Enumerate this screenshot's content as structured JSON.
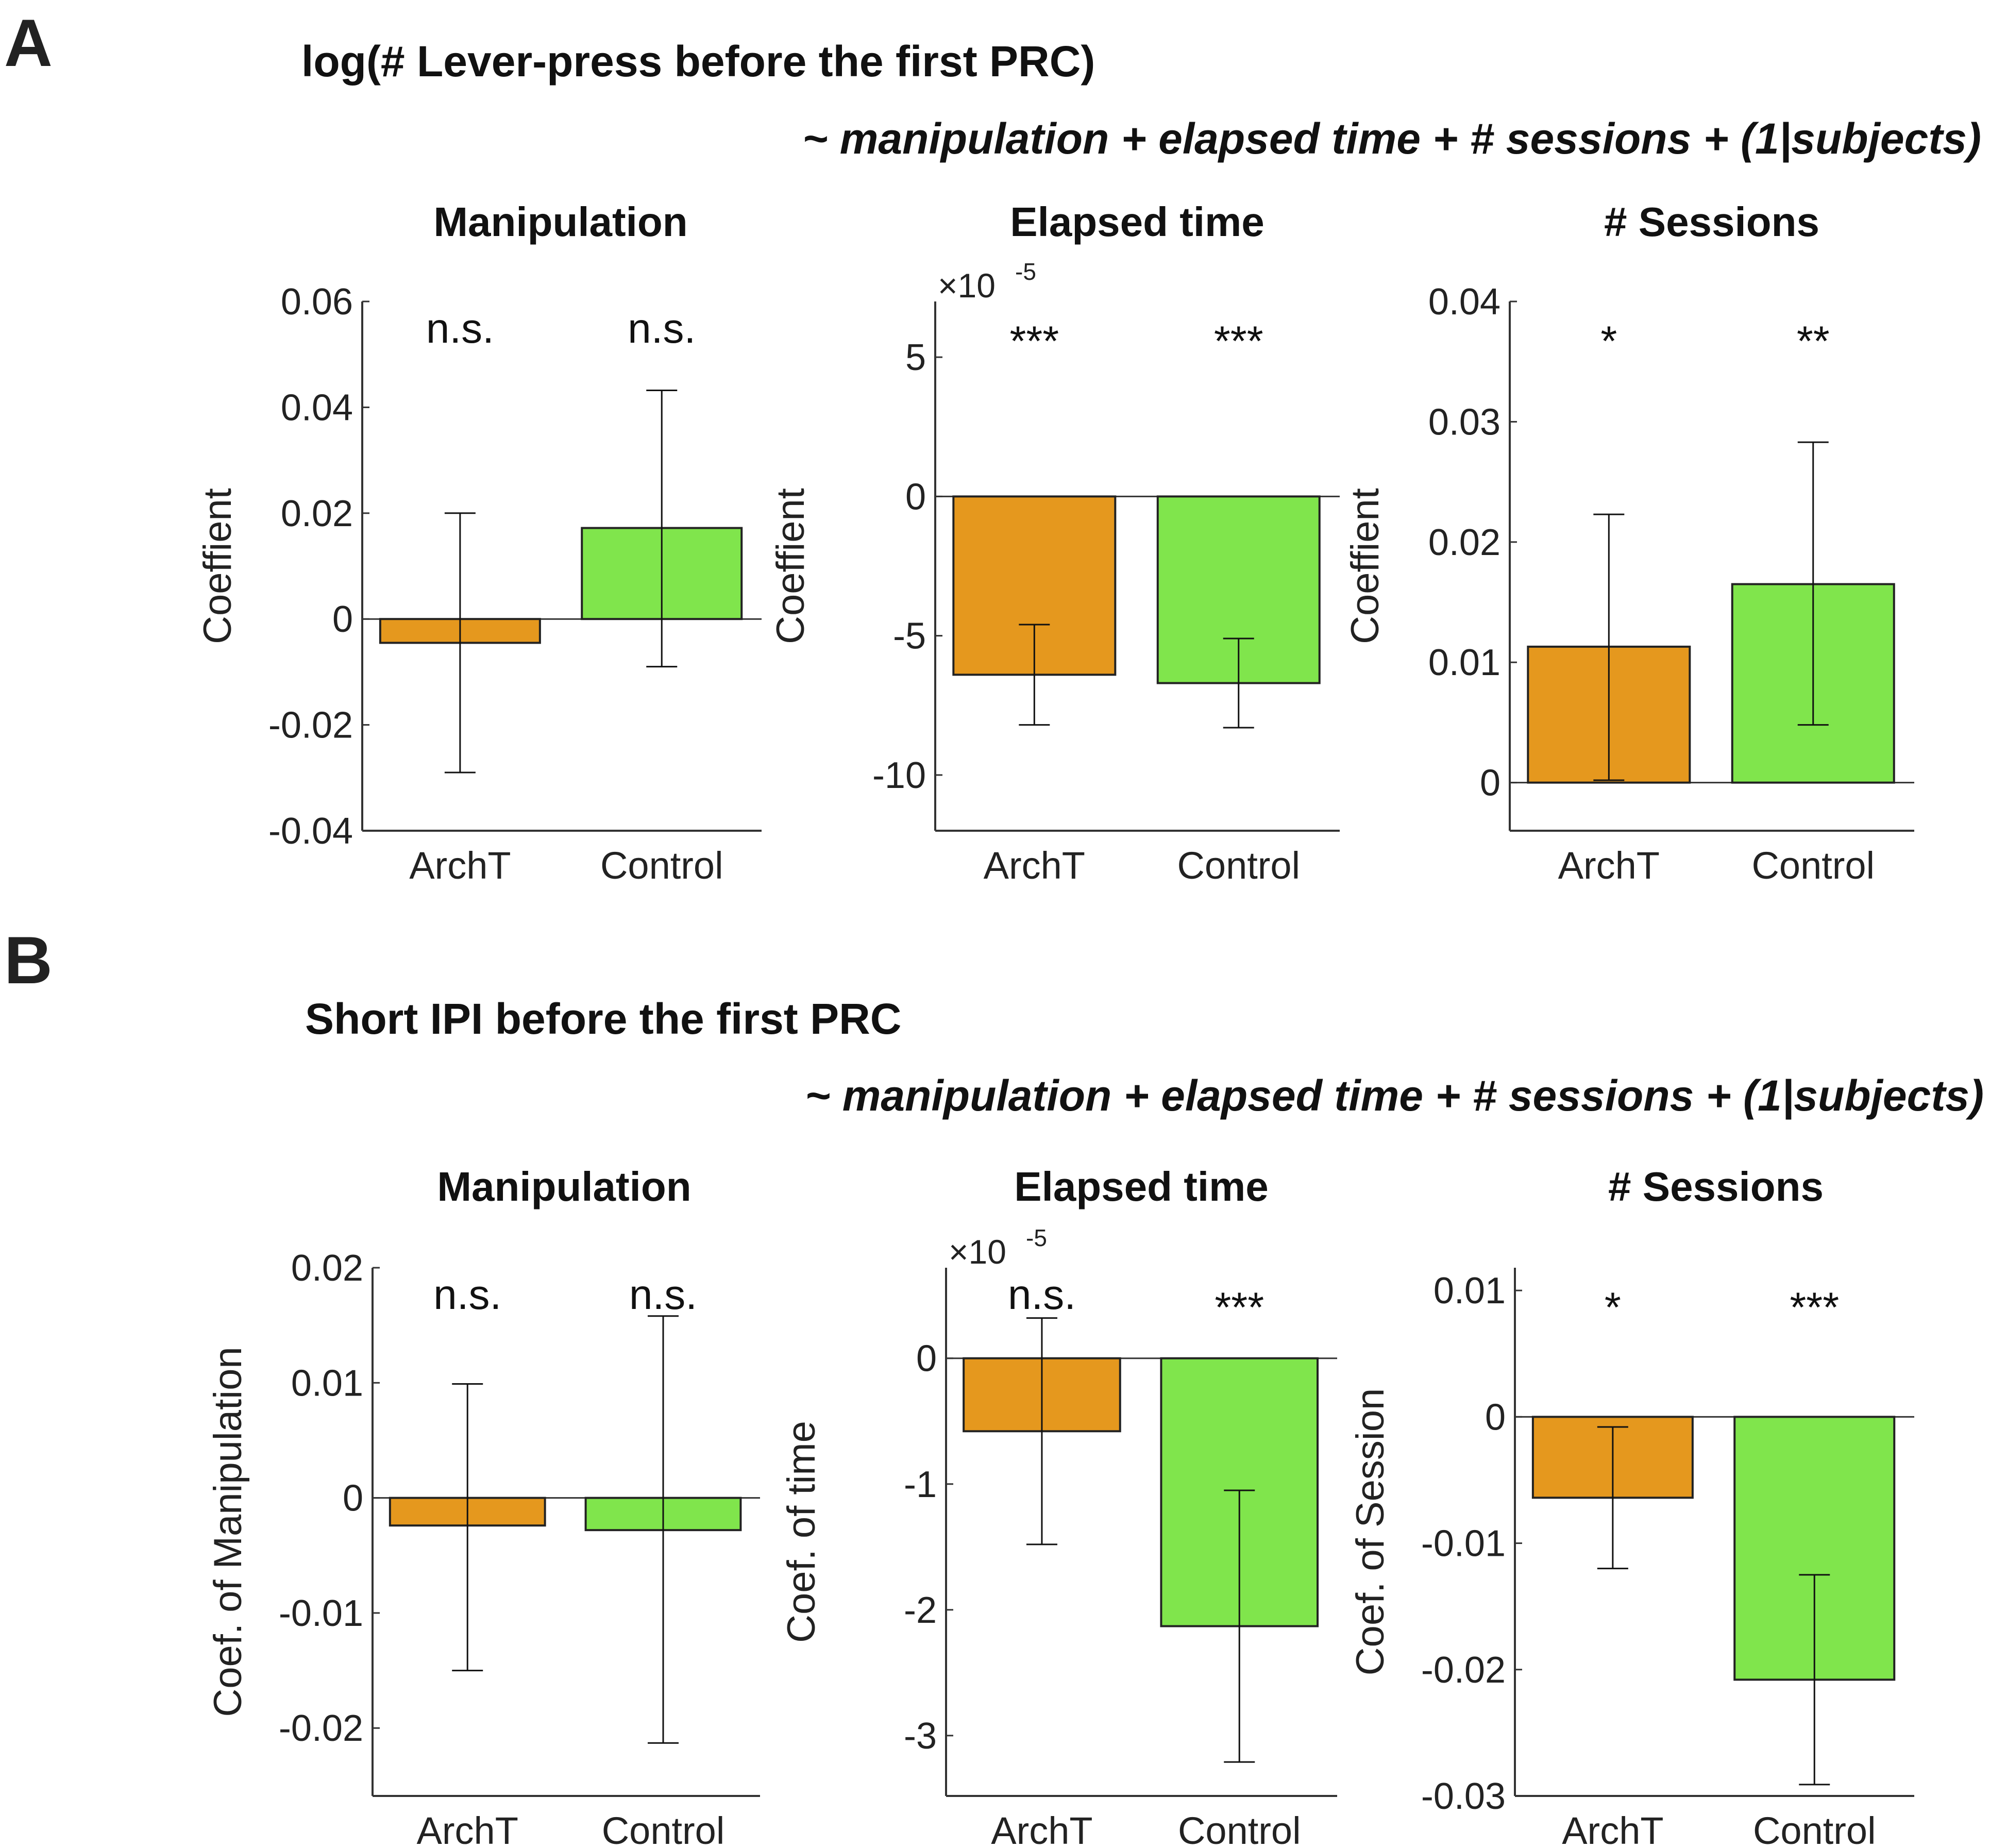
{
  "panels": [
    {
      "letter": "A",
      "heading": "log(# Lever-press before the first PRC)",
      "formula": "~ manipulation + elapsed time + # sessions + (1|subjects)"
    },
    {
      "letter": "B",
      "heading": "Short IPI before the first PRC",
      "formula": "~ manipulation + elapsed time + # sessions + (1|subjects)"
    }
  ],
  "colors": {
    "ArchT": "#E5981E",
    "Control": "#80E54C",
    "axis": "#333333",
    "text": "#111111"
  },
  "chart_data": [
    {
      "type": "bar",
      "panel": "A",
      "title": "Manipulation",
      "ylabel": "Coeffient",
      "scale_base": "",
      "scale_exponent": "",
      "categories": [
        "ArchT",
        "Control"
      ],
      "values": [
        -0.0045,
        0.0172
      ],
      "err_low": [
        -0.029,
        -0.009
      ],
      "err_high": [
        0.02,
        0.0432
      ],
      "significance": [
        "n.s.",
        "n.s."
      ],
      "ylim": [
        -0.04,
        0.06
      ],
      "yticks": [
        -0.04,
        -0.02,
        0,
        0.02,
        0.04,
        0.06
      ],
      "ytick_labels": [
        "-0.04",
        "-0.02",
        "0",
        "0.02",
        "0.04",
        "0.06"
      ]
    },
    {
      "type": "bar",
      "panel": "A",
      "title": "Elapsed time",
      "ylabel": "Coeffient",
      "scale_base": "×10",
      "scale_exponent": "-5",
      "categories": [
        "ArchT",
        "Control"
      ],
      "values": [
        -6.4,
        -6.7
      ],
      "err_low": [
        -8.2,
        -8.3
      ],
      "err_high": [
        -4.6,
        -5.1
      ],
      "significance": [
        "***",
        "***"
      ],
      "ylim": [
        -12,
        7
      ],
      "yticks": [
        -10,
        -5,
        0,
        5
      ],
      "ytick_labels": [
        "-10",
        "-5",
        "0",
        "5"
      ]
    },
    {
      "type": "bar",
      "panel": "A",
      "title": "# Sessions",
      "ylabel": "Coeffient",
      "scale_base": "",
      "scale_exponent": "",
      "categories": [
        "ArchT",
        "Control"
      ],
      "values": [
        0.0113,
        0.0165
      ],
      "err_low": [
        0.0002,
        0.0048
      ],
      "err_high": [
        0.0223,
        0.0283
      ],
      "significance": [
        "*",
        "**"
      ],
      "ylim": [
        -0.004,
        0.04
      ],
      "yticks": [
        0,
        0.01,
        0.02,
        0.03,
        0.04
      ],
      "ytick_labels": [
        "0",
        "0.01",
        "0.02",
        "0.03",
        "0.04"
      ]
    },
    {
      "type": "bar",
      "panel": "B",
      "title": "Manipulation",
      "ylabel": "Coef. of Manipulation",
      "scale_base": "",
      "scale_exponent": "",
      "categories": [
        "ArchT",
        "Control"
      ],
      "values": [
        -0.0024,
        -0.0028
      ],
      "err_low": [
        -0.015,
        -0.0213
      ],
      "err_high": [
        0.0099,
        0.0158
      ],
      "significance": [
        "n.s.",
        "n.s."
      ],
      "ylim": [
        -0.0259,
        0.02
      ],
      "yticks": [
        -0.02,
        -0.01,
        0,
        0.01,
        0.02
      ],
      "ytick_labels": [
        "-0.02",
        "-0.01",
        "0",
        "0.01",
        "0.02"
      ]
    },
    {
      "type": "bar",
      "panel": "B",
      "title": "Elapsed time",
      "ylabel": "Coef. of time",
      "scale_base": "×10",
      "scale_exponent": "-5",
      "categories": [
        "ArchT",
        "Control"
      ],
      "values": [
        -0.58,
        -2.13
      ],
      "err_low": [
        -1.48,
        -3.21
      ],
      "err_high": [
        0.32,
        -1.05
      ],
      "significance": [
        "n.s.",
        "***"
      ],
      "ylim": [
        -3.48,
        0.72
      ],
      "yticks": [
        -3,
        -2,
        -1,
        0
      ],
      "ytick_labels": [
        "-3",
        "-2",
        "-1",
        "0"
      ]
    },
    {
      "type": "bar",
      "panel": "B",
      "title": "# Sessions",
      "ylabel": "Coef. of Session",
      "scale_base": "",
      "scale_exponent": "",
      "categories": [
        "ArchT",
        "Control"
      ],
      "values": [
        -0.0064,
        -0.0208
      ],
      "err_low": [
        -0.012,
        -0.0291
      ],
      "err_high": [
        -0.0008,
        -0.0125
      ],
      "significance": [
        "*",
        "***"
      ],
      "ylim": [
        -0.03,
        0.0118
      ],
      "yticks": [
        -0.03,
        -0.02,
        -0.01,
        0,
        0.01
      ],
      "ytick_labels": [
        "-0.03",
        "-0.02",
        "-0.01",
        "0",
        "0.01"
      ]
    }
  ]
}
